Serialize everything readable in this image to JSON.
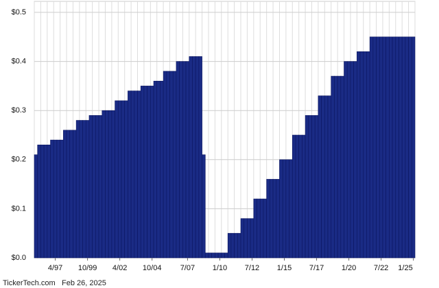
{
  "chart_data": {
    "type": "bar",
    "color": "#1a2b85",
    "grid": true,
    "categories": [
      null,
      null,
      null,
      null,
      null,
      null,
      "4/97",
      null,
      null,
      null,
      null,
      null,
      null,
      null,
      null,
      null,
      "10/99",
      null,
      null,
      null,
      null,
      null,
      null,
      null,
      null,
      null,
      "4/02",
      null,
      null,
      null,
      null,
      null,
      null,
      null,
      null,
      null,
      "10/04",
      null,
      null,
      null,
      null,
      null,
      null,
      null,
      null,
      null,
      null,
      "7/07",
      null,
      null,
      null,
      null,
      null,
      null,
      null,
      null,
      null,
      "1/10",
      null,
      null,
      null,
      null,
      null,
      null,
      null,
      null,
      null,
      "7/12",
      null,
      null,
      null,
      null,
      null,
      null,
      null,
      null,
      null,
      "1/15",
      null,
      null,
      null,
      null,
      null,
      null,
      null,
      null,
      null,
      "7/17",
      null,
      null,
      null,
      null,
      null,
      null,
      null,
      null,
      null,
      "1/20",
      null,
      null,
      null,
      null,
      null,
      null,
      null,
      null,
      null,
      "7/22",
      null,
      null,
      null,
      null,
      null,
      null,
      null,
      null,
      null,
      "1/25"
    ],
    "values": [
      0.21,
      0.23,
      0.23,
      0.23,
      0.23,
      0.24,
      0.24,
      0.24,
      0.24,
      0.26,
      0.26,
      0.26,
      0.26,
      0.28,
      0.28,
      0.28,
      0.28,
      0.29,
      0.29,
      0.29,
      0.29,
      0.3,
      0.3,
      0.3,
      0.3,
      0.32,
      0.32,
      0.32,
      0.32,
      0.34,
      0.34,
      0.34,
      0.34,
      0.35,
      0.35,
      0.35,
      0.35,
      0.36,
      0.36,
      0.36,
      0.38,
      0.38,
      0.38,
      0.38,
      0.4,
      0.4,
      0.4,
      0.4,
      0.41,
      0.41,
      0.41,
      0.41,
      0.21,
      0.01,
      0.01,
      0.01,
      0.01,
      0.01,
      0.01,
      0.01,
      0.05,
      0.05,
      0.05,
      0.05,
      0.08,
      0.08,
      0.08,
      0.08,
      0.12,
      0.12,
      0.12,
      0.12,
      0.16,
      0.16,
      0.16,
      0.16,
      0.2,
      0.2,
      0.2,
      0.2,
      0.25,
      0.25,
      0.25,
      0.25,
      0.29,
      0.29,
      0.29,
      0.29,
      0.33,
      0.33,
      0.33,
      0.33,
      0.37,
      0.37,
      0.37,
      0.37,
      0.4,
      0.4,
      0.4,
      0.4,
      0.42,
      0.42,
      0.42,
      0.42,
      0.45,
      0.45,
      0.45,
      0.45,
      0.45,
      0.45,
      0.45,
      0.45,
      0.45,
      0.45,
      0.45,
      0.45,
      0.45,
      0.45
    ],
    "ylim": [
      0,
      0.5
    ],
    "yticks": [
      {
        "value": 0,
        "label": "$0.0"
      },
      {
        "value": 0.1,
        "label": "$0.1"
      },
      {
        "value": 0.2,
        "label": "$0.2"
      },
      {
        "value": 0.3,
        "label": "$0.3"
      },
      {
        "value": 0.4,
        "label": "$0.4"
      },
      {
        "value": 0.5,
        "label": "$0.5"
      }
    ],
    "source": "TickerTech.com",
    "date": "Feb 26, 2025"
  }
}
